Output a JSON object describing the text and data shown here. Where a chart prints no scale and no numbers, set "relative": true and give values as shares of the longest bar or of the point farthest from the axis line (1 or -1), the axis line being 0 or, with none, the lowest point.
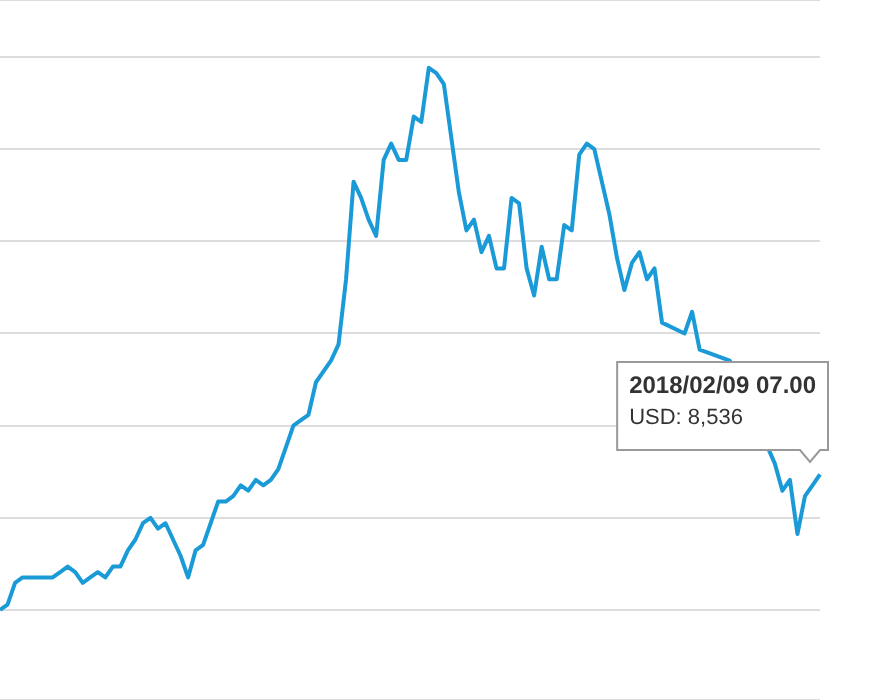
{
  "chart_data": {
    "type": "line",
    "relative": true,
    "grid": "y",
    "color": "#1a9bd7",
    "categories": [
      null,
      null,
      null,
      null,
      null,
      null,
      null,
      null,
      null,
      null,
      null,
      null,
      null,
      null,
      null,
      null,
      null,
      null,
      null,
      null,
      null,
      null,
      null,
      null,
      null,
      null,
      null,
      null,
      null,
      null,
      null,
      null,
      null,
      null,
      null,
      null,
      null,
      null,
      null,
      null,
      null,
      null,
      null,
      null,
      null,
      null,
      null,
      null,
      null,
      null,
      null,
      null,
      null,
      null,
      null,
      null,
      null,
      null,
      null,
      null,
      null,
      null,
      null,
      null,
      null,
      null,
      null,
      null,
      null,
      null,
      null,
      null,
      null,
      null,
      null,
      null,
      null,
      null,
      null,
      null,
      null,
      null,
      null,
      null,
      null,
      null,
      null,
      null,
      null,
      null,
      null,
      null,
      null,
      null,
      null,
      null,
      null,
      null,
      null,
      null,
      null,
      null,
      null,
      null,
      null,
      null,
      null,
      null,
      null,
      null
    ],
    "values": [
      0,
      0.01,
      0.05,
      0.06,
      0.06,
      0.06,
      0.06,
      0.06,
      0.07,
      0.08,
      0.07,
      0.05,
      0.06,
      0.07,
      0.06,
      0.08,
      0.08,
      0.11,
      0.13,
      0.16,
      0.17,
      0.15,
      0.16,
      0.13,
      0.1,
      0.06,
      0.11,
      0.12,
      0.16,
      0.2,
      0.2,
      0.21,
      0.23,
      0.22,
      0.24,
      0.23,
      0.24,
      0.26,
      0.3,
      0.34,
      0.35,
      0.36,
      0.42,
      0.44,
      0.46,
      0.49,
      0.61,
      0.79,
      0.76,
      0.72,
      0.69,
      0.83,
      0.86,
      0.83,
      0.83,
      0.91,
      0.9,
      1,
      0.99,
      0.97,
      0.87,
      0.77,
      0.7,
      0.72,
      0.66,
      0.69,
      0.63,
      0.63,
      0.76,
      0.75,
      0.63,
      0.58,
      0.67,
      0.61,
      0.61,
      0.71,
      0.7,
      0.84,
      0.86,
      0.85,
      0.79,
      0.73,
      0.65,
      0.59,
      0.64,
      0.66,
      0.61,
      0.63,
      0.53,
      null,
      null,
      0.51,
      0.55,
      0.48,
      null,
      null,
      null,
      0.46,
      null,
      null,
      null,
      null,
      null,
      0.27,
      0.22,
      0.24,
      0.14,
      0.21,
      0.23,
      0.25
    ],
    "annotations": [
      "2018/02/09 07.00",
      "USD: 8,536"
    ]
  }
}
